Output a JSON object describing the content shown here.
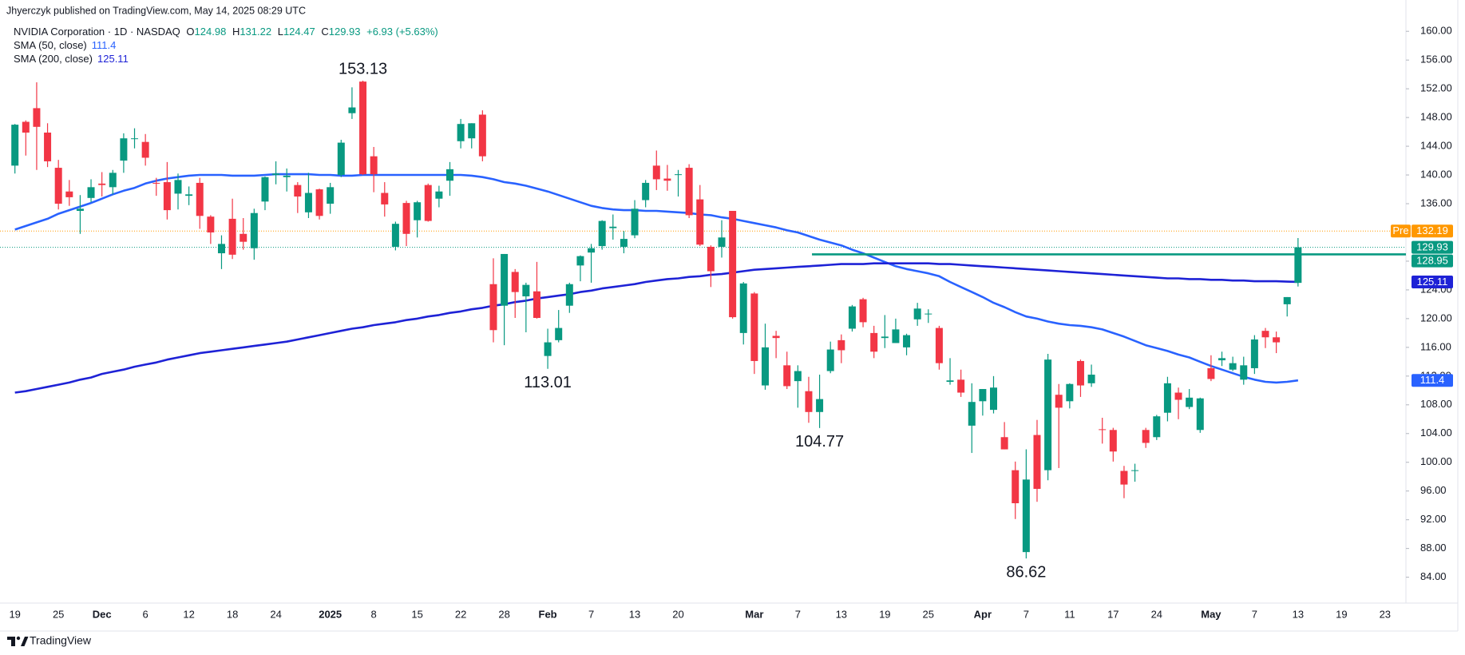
{
  "chart_data": {
    "type": "candlestick",
    "credit": "Jhyerczyk published on TradingView.com, May 14, 2025 08:29 UTC",
    "legend_title": "NVIDIA Corporation · 1D · NASDAQ",
    "ohlc_labels": [
      "O",
      "H",
      "L",
      "C"
    ],
    "change": "+6.93 (+5.63%)",
    "footer": "TradingView",
    "up_color": "#089981",
    "down_color": "#f23645",
    "categories": [
      "19",
      null,
      null,
      null,
      "25",
      null,
      null,
      null,
      "Dec",
      null,
      null,
      null,
      "6",
      null,
      null,
      null,
      "12",
      null,
      null,
      null,
      "18",
      null,
      null,
      null,
      "24",
      null,
      null,
      null,
      null,
      "2025",
      null,
      null,
      null,
      "8",
      null,
      null,
      null,
      "15",
      null,
      null,
      null,
      "22",
      null,
      null,
      null,
      "28",
      null,
      null,
      null,
      "Feb",
      null,
      null,
      null,
      "7",
      null,
      null,
      null,
      "13",
      null,
      null,
      null,
      "20",
      null,
      null,
      null,
      null,
      null,
      null,
      "Mar",
      null,
      null,
      null,
      "7",
      null,
      null,
      null,
      "13",
      null,
      null,
      null,
      "19",
      null,
      null,
      null,
      "25",
      null,
      null,
      null,
      null,
      "Apr",
      null,
      null,
      null,
      "7",
      null,
      null,
      null,
      "11",
      null,
      null,
      null,
      "17",
      null,
      null,
      null,
      "24",
      null,
      null,
      null,
      null,
      "May",
      null,
      null,
      null,
      "7",
      null,
      null,
      null,
      "13",
      null,
      null,
      null,
      "19",
      null,
      null,
      null,
      "23"
    ],
    "open": [
      141.3,
      147.4,
      149.3,
      145.9,
      141.0,
      137.7,
      135.0,
      136.8,
      138.8,
      138.3,
      142.0,
      145.1,
      144.6,
      138.9,
      139.0,
      137.4,
      137.1,
      138.9,
      134.2,
      129.1,
      133.9,
      131.8,
      129.8,
      136.3,
      140.0,
      139.7,
      138.6,
      134.8,
      138.0,
      136.0,
      140.0,
      148.6,
      153.0,
      142.6,
      137.5,
      130.0,
      136.1,
      133.7,
      138.6,
      136.7,
      139.2,
      144.7,
      145.1,
      148.4,
      124.8,
      121.8,
      126.5,
      123.1,
      123.8,
      114.8,
      117.0,
      121.8,
      127.4,
      129.2,
      130.1,
      132.6,
      130.0,
      131.6,
      136.5,
      141.3,
      139.5,
      140.0,
      141.0,
      136.6,
      130.0,
      130.0,
      135.0,
      118.0,
      123.5,
      110.7,
      117.6,
      113.5,
      111.3,
      109.9,
      107.0,
      112.7,
      117.0,
      118.6,
      122.7,
      118.0,
      117.3,
      116.6,
      116.0,
      119.9,
      120.6,
      118.7,
      111.2,
      111.5,
      105.1,
      108.5,
      107.3,
      103.5,
      98.9,
      87.5,
      103.8,
      98.9,
      109.4,
      108.5,
      114.1,
      111.0,
      104.6,
      104.5,
      98.8,
      98.8,
      104.5,
      103.5,
      106.9,
      109.7,
      107.7,
      104.5,
      113.1,
      114.2,
      112.9,
      111.5,
      113.1,
      118.3,
      117.4,
      122.0,
      124.98,
      null,
      null,
      null,
      null,
      null,
      null,
      null,
      null
    ],
    "high": [
      147.1,
      147.6,
      152.9,
      147.2,
      142.1,
      139.3,
      137.2,
      139.4,
      140.4,
      140.7,
      145.8,
      146.5,
      145.7,
      139.6,
      141.8,
      140.2,
      138.4,
      139.6,
      134.4,
      131.6,
      136.7,
      134.0,
      135.3,
      139.8,
      141.9,
      140.9,
      139.0,
      140.3,
      138.1,
      138.9,
      144.9,
      152.2,
      153.13,
      143.9,
      139.0,
      133.5,
      136.4,
      136.4,
      138.8,
      138.5,
      141.8,
      147.8,
      147.2,
      149.0,
      128.4,
      129.0,
      126.9,
      125.0,
      127.9,
      118.6,
      121.2,
      125.0,
      128.8,
      130.4,
      133.7,
      134.5,
      132.2,
      136.5,
      139.3,
      143.4,
      141.4,
      140.7,
      141.5,
      138.6,
      130.2,
      133.7,
      135.0,
      125.1,
      123.7,
      119.3,
      118.3,
      115.4,
      113.5,
      111.9,
      112.2,
      116.8,
      117.8,
      121.9,
      122.9,
      119.0,
      120.5,
      120.0,
      117.9,
      122.2,
      121.3,
      119.0,
      114.5,
      112.9,
      111.0,
      110.2,
      112.0,
      105.6,
      100.1,
      101.8,
      105.9,
      115.1,
      110.9,
      111.0,
      114.3,
      113.6,
      106.2,
      104.8,
      99.5,
      99.8,
      104.8,
      106.6,
      111.9,
      110.4,
      110.2,
      109.0,
      114.9,
      115.4,
      114.7,
      114.7,
      117.7,
      118.7,
      118.2,
      123.0,
      131.22,
      null,
      null,
      null,
      null,
      null,
      null,
      null,
      null
    ],
    "low": [
      140.2,
      142.7,
      140.7,
      141.1,
      135.2,
      135.7,
      131.8,
      136.2,
      137.0,
      137.3,
      140.3,
      143.7,
      141.3,
      137.1,
      133.8,
      135.2,
      135.8,
      132.5,
      130.4,
      126.9,
      128.3,
      129.6,
      128.2,
      135.1,
      138.7,
      137.7,
      134.7,
      134.0,
      133.8,
      134.6,
      139.7,
      147.8,
      140.0,
      137.6,
      134.2,
      129.5,
      130.1,
      131.3,
      133.5,
      135.5,
      137.1,
      143.7,
      143.7,
      141.9,
      116.7,
      116.3,
      120.1,
      118.1,
      120.0,
      113.01,
      116.7,
      120.8,
      125.2,
      125.0,
      129.6,
      131.0,
      129.1,
      131.2,
      135.5,
      137.9,
      137.8,
      137.0,
      134.0,
      130.1,
      124.4,
      128.5,
      120.0,
      116.4,
      112.3,
      110.1,
      114.5,
      110.2,
      107.6,
      105.5,
      104.77,
      112.4,
      113.8,
      118.2,
      118.8,
      114.5,
      115.9,
      116.6,
      114.9,
      119.0,
      119.4,
      112.9,
      110.8,
      109.1,
      101.3,
      106.5,
      106.8,
      101.8,
      92.1,
      86.62,
      94.5,
      97.5,
      99.2,
      107.5,
      109.1,
      110.5,
      102.6,
      100.1,
      95.0,
      97.3,
      102.0,
      103.1,
      105.7,
      106.0,
      107.4,
      104.1,
      111.3,
      113.4,
      112.7,
      110.8,
      112.3,
      115.9,
      115.2,
      120.3,
      124.47,
      null,
      null,
      null,
      null,
      null,
      null,
      null,
      null
    ],
    "close": [
      147.0,
      145.9,
      146.7,
      141.9,
      136.0,
      136.9,
      135.3,
      138.3,
      138.6,
      140.3,
      145.1,
      145.1,
      142.4,
      138.8,
      135.1,
      139.3,
      137.3,
      134.3,
      132.0,
      130.4,
      128.9,
      130.7,
      134.7,
      139.7,
      140.2,
      139.9,
      137.0,
      137.5,
      134.3,
      138.3,
      144.5,
      149.4,
      140.1,
      140.1,
      135.9,
      133.2,
      131.8,
      136.2,
      133.6,
      137.7,
      140.8,
      147.1,
      147.2,
      142.6,
      118.4,
      129.0,
      123.7,
      124.7,
      120.1,
      116.7,
      118.7,
      124.8,
      128.7,
      129.8,
      133.6,
      132.8,
      131.1,
      135.3,
      138.9,
      139.4,
      139.2,
      140.1,
      134.4,
      130.3,
      126.6,
      131.3,
      120.2,
      124.9,
      114.1,
      116.0,
      117.3,
      110.6,
      112.7,
      107.0,
      108.8,
      115.7,
      115.6,
      121.7,
      119.5,
      115.4,
      117.5,
      118.5,
      117.7,
      121.4,
      120.7,
      113.8,
      111.4,
      109.7,
      108.4,
      110.2,
      110.4,
      101.8,
      94.3,
      97.6,
      96.3,
      114.3,
      107.6,
      110.9,
      110.7,
      112.2,
      104.5,
      101.5,
      96.9,
      98.9,
      102.7,
      106.4,
      111.0,
      108.7,
      109.0,
      108.9,
      111.6,
      114.5,
      113.8,
      113.5,
      117.1,
      117.4,
      116.7,
      123.0,
      129.93,
      null,
      null,
      null,
      null,
      null,
      null,
      null,
      null
    ],
    "series": [
      {
        "name": "SMA (50, close)",
        "color": "#2962ff",
        "values": [
          132.4,
          132.9,
          133.4,
          133.9,
          134.6,
          135.1,
          135.6,
          136.1,
          136.7,
          137.3,
          137.8,
          138.2,
          138.8,
          139.2,
          139.5,
          139.7,
          139.9,
          140.0,
          140.0,
          140.0,
          139.9,
          139.9,
          139.9,
          140.0,
          140.1,
          140.1,
          140.1,
          140.1,
          140.0,
          140.0,
          139.9,
          139.9,
          140.0,
          140.0,
          140.0,
          140.0,
          140.0,
          140.0,
          140.0,
          140.0,
          140.0,
          140.0,
          139.9,
          139.7,
          139.4,
          139.0,
          138.8,
          138.5,
          138.1,
          137.7,
          137.2,
          136.7,
          136.2,
          135.7,
          135.4,
          135.2,
          135.1,
          135.1,
          135.0,
          135.0,
          134.9,
          134.8,
          134.7,
          134.5,
          134.4,
          134.1,
          133.9,
          133.6,
          133.3,
          133.0,
          132.7,
          132.3,
          132.0,
          131.5,
          131.0,
          130.6,
          130.2,
          129.6,
          129.1,
          128.5,
          127.9,
          127.3,
          126.9,
          126.6,
          126.3,
          125.9,
          125.1,
          124.4,
          123.7,
          123.0,
          122.2,
          121.6,
          120.9,
          120.3,
          120.0,
          119.6,
          119.3,
          119.1,
          119.0,
          118.8,
          118.5,
          118.0,
          117.5,
          116.9,
          116.3,
          115.9,
          115.5,
          115.0,
          114.6,
          114.0,
          113.4,
          112.9,
          112.4,
          111.9,
          111.5,
          111.2,
          111.1,
          111.2,
          111.4,
          null,
          null,
          null,
          null,
          null,
          null,
          null,
          null
        ]
      },
      {
        "name": "SMA (200, close)",
        "color": "#1e22d6",
        "values": [
          109.7,
          109.9,
          110.2,
          110.5,
          110.8,
          111.1,
          111.5,
          111.8,
          112.3,
          112.6,
          112.9,
          113.3,
          113.6,
          113.9,
          114.3,
          114.6,
          114.9,
          115.2,
          115.4,
          115.6,
          115.8,
          116.0,
          116.2,
          116.4,
          116.6,
          116.8,
          117.1,
          117.4,
          117.7,
          118.0,
          118.3,
          118.6,
          118.8,
          119.1,
          119.3,
          119.5,
          119.8,
          120.0,
          120.3,
          120.5,
          120.8,
          121.0,
          121.3,
          121.5,
          121.8,
          122.0,
          122.3,
          122.5,
          122.8,
          123.0,
          123.2,
          123.4,
          123.7,
          123.9,
          124.2,
          124.4,
          124.6,
          124.8,
          125.1,
          125.3,
          125.5,
          125.6,
          125.8,
          125.9,
          126.1,
          126.2,
          126.4,
          126.6,
          126.8,
          126.9,
          127.0,
          127.1,
          127.2,
          127.3,
          127.4,
          127.5,
          127.6,
          127.6,
          127.6,
          127.7,
          127.7,
          127.7,
          127.7,
          127.7,
          127.7,
          127.6,
          127.6,
          127.5,
          127.4,
          127.3,
          127.2,
          127.1,
          127.0,
          126.9,
          126.8,
          126.7,
          126.6,
          126.5,
          126.4,
          126.3,
          126.2,
          126.1,
          126.0,
          125.9,
          125.8,
          125.7,
          125.6,
          125.6,
          125.5,
          125.5,
          125.4,
          125.4,
          125.3,
          125.3,
          125.2,
          125.2,
          125.2,
          125.15,
          125.11,
          null,
          null,
          null,
          null,
          null,
          null,
          null,
          null
        ]
      }
    ],
    "annotations": [
      153.13,
      113.01,
      104.77,
      86.62
    ],
    "premarket": {
      "label": "Pre",
      "value": 132.19,
      "color": "#ff9800"
    },
    "hline": {
      "value": 128.95,
      "color": "#089981"
    },
    "ylim": [
      80.4,
      160.8
    ],
    "yticks": [
      {
        "value": 84,
        "label": "84.00"
      },
      {
        "value": 88,
        "label": "88.00"
      },
      {
        "value": 92,
        "label": "92.00"
      },
      {
        "value": 96,
        "label": "96.00"
      },
      {
        "value": 100,
        "label": "100.00"
      },
      {
        "value": 104,
        "label": "104.00"
      },
      {
        "value": 108,
        "label": "108.00"
      },
      {
        "value": 112,
        "label": "112.00"
      },
      {
        "value": 116,
        "label": "116.00"
      },
      {
        "value": 120,
        "label": "120.00"
      },
      {
        "value": 124,
        "label": "124.00"
      },
      {
        "value": 128,
        "label": "128.00"
      },
      {
        "value": 132,
        "label": "132.00"
      },
      {
        "value": 136,
        "label": "136.00"
      },
      {
        "value": 140,
        "label": "140.00"
      },
      {
        "value": 144,
        "label": "144.00"
      },
      {
        "value": 148,
        "label": "148.00"
      },
      {
        "value": 152,
        "label": "152.00"
      },
      {
        "value": 156,
        "label": "156.00"
      },
      {
        "value": 160,
        "label": "160.00"
      }
    ],
    "grid": false
  }
}
